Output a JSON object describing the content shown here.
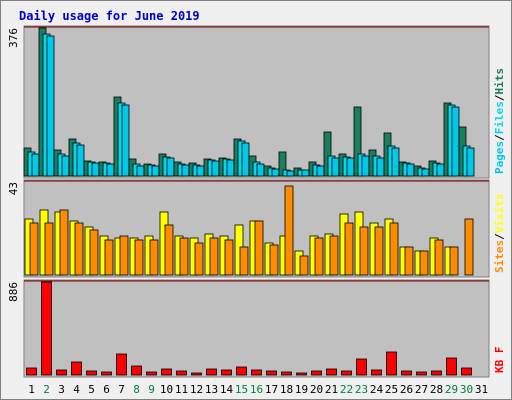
{
  "colors": {
    "background": "#f0f0f0",
    "plot_bg": "#c0c0c0",
    "hits": "#1a7f5f",
    "files": "#00d8f0",
    "pages": "#00c8e8",
    "visits": "#ffff00",
    "sites": "#ff8c00",
    "kbytes": "#ff0000",
    "title": "#0000cc",
    "weekend_label": "#008040"
  },
  "chart_data": {
    "type": "bar",
    "title": "Daily usage for June 2019",
    "x": [
      "1",
      "2",
      "3",
      "4",
      "5",
      "6",
      "7",
      "8",
      "9",
      "10",
      "11",
      "12",
      "13",
      "14",
      "15",
      "16",
      "17",
      "18",
      "19",
      "20",
      "21",
      "22",
      "23",
      "24",
      "25",
      "26",
      "27",
      "28",
      "29",
      "30",
      "31"
    ],
    "weekend_days": [
      "2",
      "8",
      "9",
      "15",
      "16",
      "22",
      "23",
      "29",
      "30"
    ],
    "panels": [
      {
        "id": "hits",
        "max_label": "376",
        "ylim": [
          0,
          376
        ],
        "legend": [
          "Pages",
          "/",
          "Files",
          "/",
          "Hits"
        ],
        "series": [
          {
            "name": "Hits",
            "values": [
              70,
              376,
              65,
              95,
              38,
              36,
              200,
              42,
              30,
              55,
              35,
              32,
              42,
              45,
              95,
              50,
              25,
              60,
              20,
              35,
              112,
              55,
              175,
              65,
              110,
              35,
              25,
              37,
              185,
              125,
              0
            ]
          },
          {
            "name": "Files",
            "values": [
              60,
              362,
              55,
              85,
              35,
              32,
              185,
              30,
              28,
              47,
              30,
              28,
              40,
              44,
              90,
              35,
              20,
              15,
              15,
              28,
              50,
              48,
              55,
              50,
              75,
              32,
              20,
              32,
              180,
              75,
              0
            ]
          },
          {
            "name": "Pages",
            "values": [
              55,
              355,
              50,
              80,
              32,
              30,
              180,
              25,
              25,
              45,
              28,
              26,
              38,
              40,
              85,
              30,
              18,
              12,
              14,
              25,
              45,
              45,
              50,
              45,
              70,
              30,
              18,
              30,
              175,
              70,
              0
            ]
          }
        ]
      },
      {
        "id": "visits",
        "max_label": "43",
        "ylim": [
          0,
          43
        ],
        "legend": [
          "Sites",
          "/",
          "Visits"
        ],
        "series": [
          {
            "name": "Visits",
            "values": [
              26,
              30,
              29,
              25,
              22,
              18,
              17,
              17,
              18,
              29,
              18,
              17,
              19,
              18,
              23,
              25,
              15,
              18,
              11,
              18,
              19,
              28,
              29,
              24,
              26,
              13,
              11,
              17,
              13,
              0,
              0
            ]
          },
          {
            "name": "Sites",
            "values": [
              24,
              24,
              30,
              24,
              21,
              16,
              18,
              16,
              16,
              23,
              17,
              15,
              17,
              16,
              13,
              25,
              14,
              41,
              9,
              17,
              18,
              24,
              22,
              22,
              24,
              13,
              11,
              16,
              13,
              26,
              0
            ]
          }
        ]
      },
      {
        "id": "kbytes",
        "max_label": "886",
        "ylim": [
          0,
          886
        ],
        "legend": [
          "KB",
          " ",
          "F"
        ],
        "series": [
          {
            "name": "KB F",
            "values": [
              70,
              886,
              45,
              120,
              35,
              30,
              200,
              90,
              25,
              55,
              35,
              22,
              60,
              50,
              80,
              45,
              35,
              30,
              15,
              35,
              55,
              35,
              150,
              45,
              215,
              35,
              25,
              35,
              160,
              65,
              0
            ]
          }
        ]
      }
    ]
  }
}
